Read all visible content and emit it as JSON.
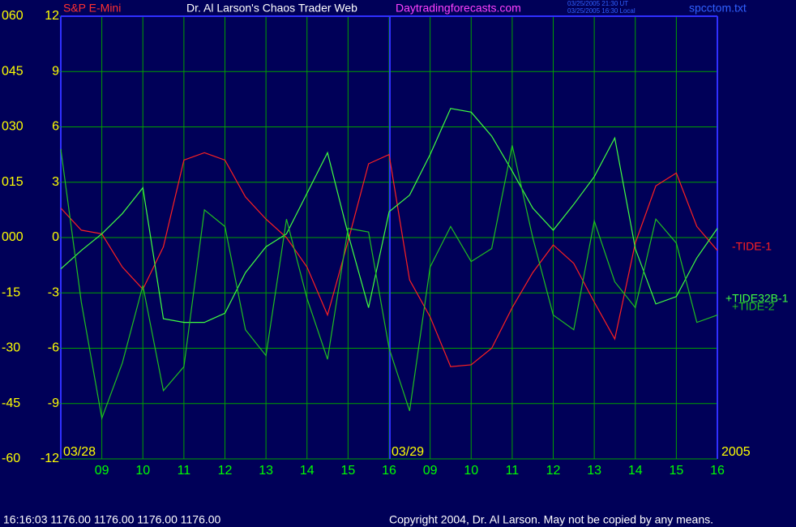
{
  "chart_data": {
    "type": "line",
    "title": "Dr. Al Larson's Chaos Trader Web",
    "instrument": "S&P E-Mini",
    "site": "Daytradingforecasts.com",
    "timestamp_ut": "03/25/2005 21:30 UT",
    "timestamp_local": "03/25/2005 16:30 Local",
    "file": "spcctom.txt",
    "status": "16:16:03  1176.00 1176.00 1176.00 1176.00",
    "copyright": "Copyright 2004, Dr. Al Larson. May not be copied by any means.",
    "date_labels": [
      "03/28",
      "03/29",
      "2005"
    ],
    "x": [
      0,
      0.5,
      1,
      1.5,
      2,
      2.5,
      3,
      3.5,
      4,
      4.5,
      5,
      5.5,
      6,
      6.5,
      7,
      7.5,
      8,
      8.5,
      9,
      9.5,
      10,
      10.5,
      11,
      11.5,
      12,
      12.5,
      13,
      13.5,
      14,
      14.5,
      15,
      15.5,
      16
    ],
    "xlim": [
      0,
      16
    ],
    "xticks": [
      {
        "value": 1,
        "label": "09"
      },
      {
        "value": 2,
        "label": "10"
      },
      {
        "value": 3,
        "label": "11"
      },
      {
        "value": 4,
        "label": "12"
      },
      {
        "value": 5,
        "label": "13"
      },
      {
        "value": 6,
        "label": "14"
      },
      {
        "value": 7,
        "label": "15"
      },
      {
        "value": 8,
        "label": "16"
      },
      {
        "value": 9,
        "label": "09"
      },
      {
        "value": 10,
        "label": "10"
      },
      {
        "value": 11,
        "label": "11"
      },
      {
        "value": 12,
        "label": "12"
      },
      {
        "value": 13,
        "label": "13"
      },
      {
        "value": 14,
        "label": "14"
      },
      {
        "value": 15,
        "label": "15"
      },
      {
        "value": 16,
        "label": "16"
      }
    ],
    "ylim": [
      -12,
      12
    ],
    "yticks": [
      12,
      9,
      6,
      3,
      0,
      -3,
      -6,
      -9,
      -12
    ],
    "y2lim": [
      -60,
      60
    ],
    "y2ticks": [
      {
        "value": 60,
        "label": "060"
      },
      {
        "value": 45,
        "label": "045"
      },
      {
        "value": 30,
        "label": "030"
      },
      {
        "value": 15,
        "label": "015"
      },
      {
        "value": 0,
        "label": "000"
      },
      -15,
      -30,
      -45,
      -60
    ],
    "grid": true,
    "series": [
      {
        "name": "-TIDE-1",
        "color": "#ff2020",
        "values": [
          1.6,
          0.4,
          0.2,
          -1.6,
          -2.8,
          -0.5,
          4.2,
          4.6,
          4.2,
          2.2,
          1.0,
          0.0,
          -1.6,
          -4.2,
          -0.2,
          4.0,
          4.5,
          -2.3,
          -4.3,
          -7.0,
          -6.9,
          -6.0,
          -3.8,
          -1.9,
          -0.4,
          -1.4,
          -3.5,
          -5.5,
          -0.3,
          2.8,
          3.5,
          0.6,
          -0.7
        ]
      },
      {
        "name": "+TIDE32B-1",
        "color": "#40ff40",
        "values": [
          -1.7,
          -0.7,
          0.2,
          1.3,
          2.7,
          -4.4,
          -4.6,
          -4.6,
          -4.1,
          -1.9,
          -0.5,
          0.2,
          2.4,
          4.6,
          0.2,
          -3.8,
          1.4,
          2.3,
          4.5,
          7.0,
          6.8,
          5.5,
          3.6,
          1.6,
          0.4,
          1.8,
          3.3,
          5.4,
          -0.6,
          -3.6,
          -3.2,
          -1.1,
          0.5
        ]
      },
      {
        "name": "+TIDE-2",
        "color": "#20c020",
        "values": [
          4.8,
          -3.5,
          -9.8,
          -6.8,
          -2.6,
          -8.3,
          -7.0,
          1.5,
          0.6,
          -5.0,
          -6.4,
          1.0,
          -3.3,
          -6.6,
          0.5,
          0.3,
          -6.0,
          -9.4,
          -1.6,
          0.6,
          -1.3,
          -0.6,
          5.0,
          0.0,
          -4.2,
          -5.0,
          0.9,
          -2.4,
          -3.8,
          1.0,
          -0.3,
          -4.6,
          -4.2
        ]
      }
    ]
  }
}
